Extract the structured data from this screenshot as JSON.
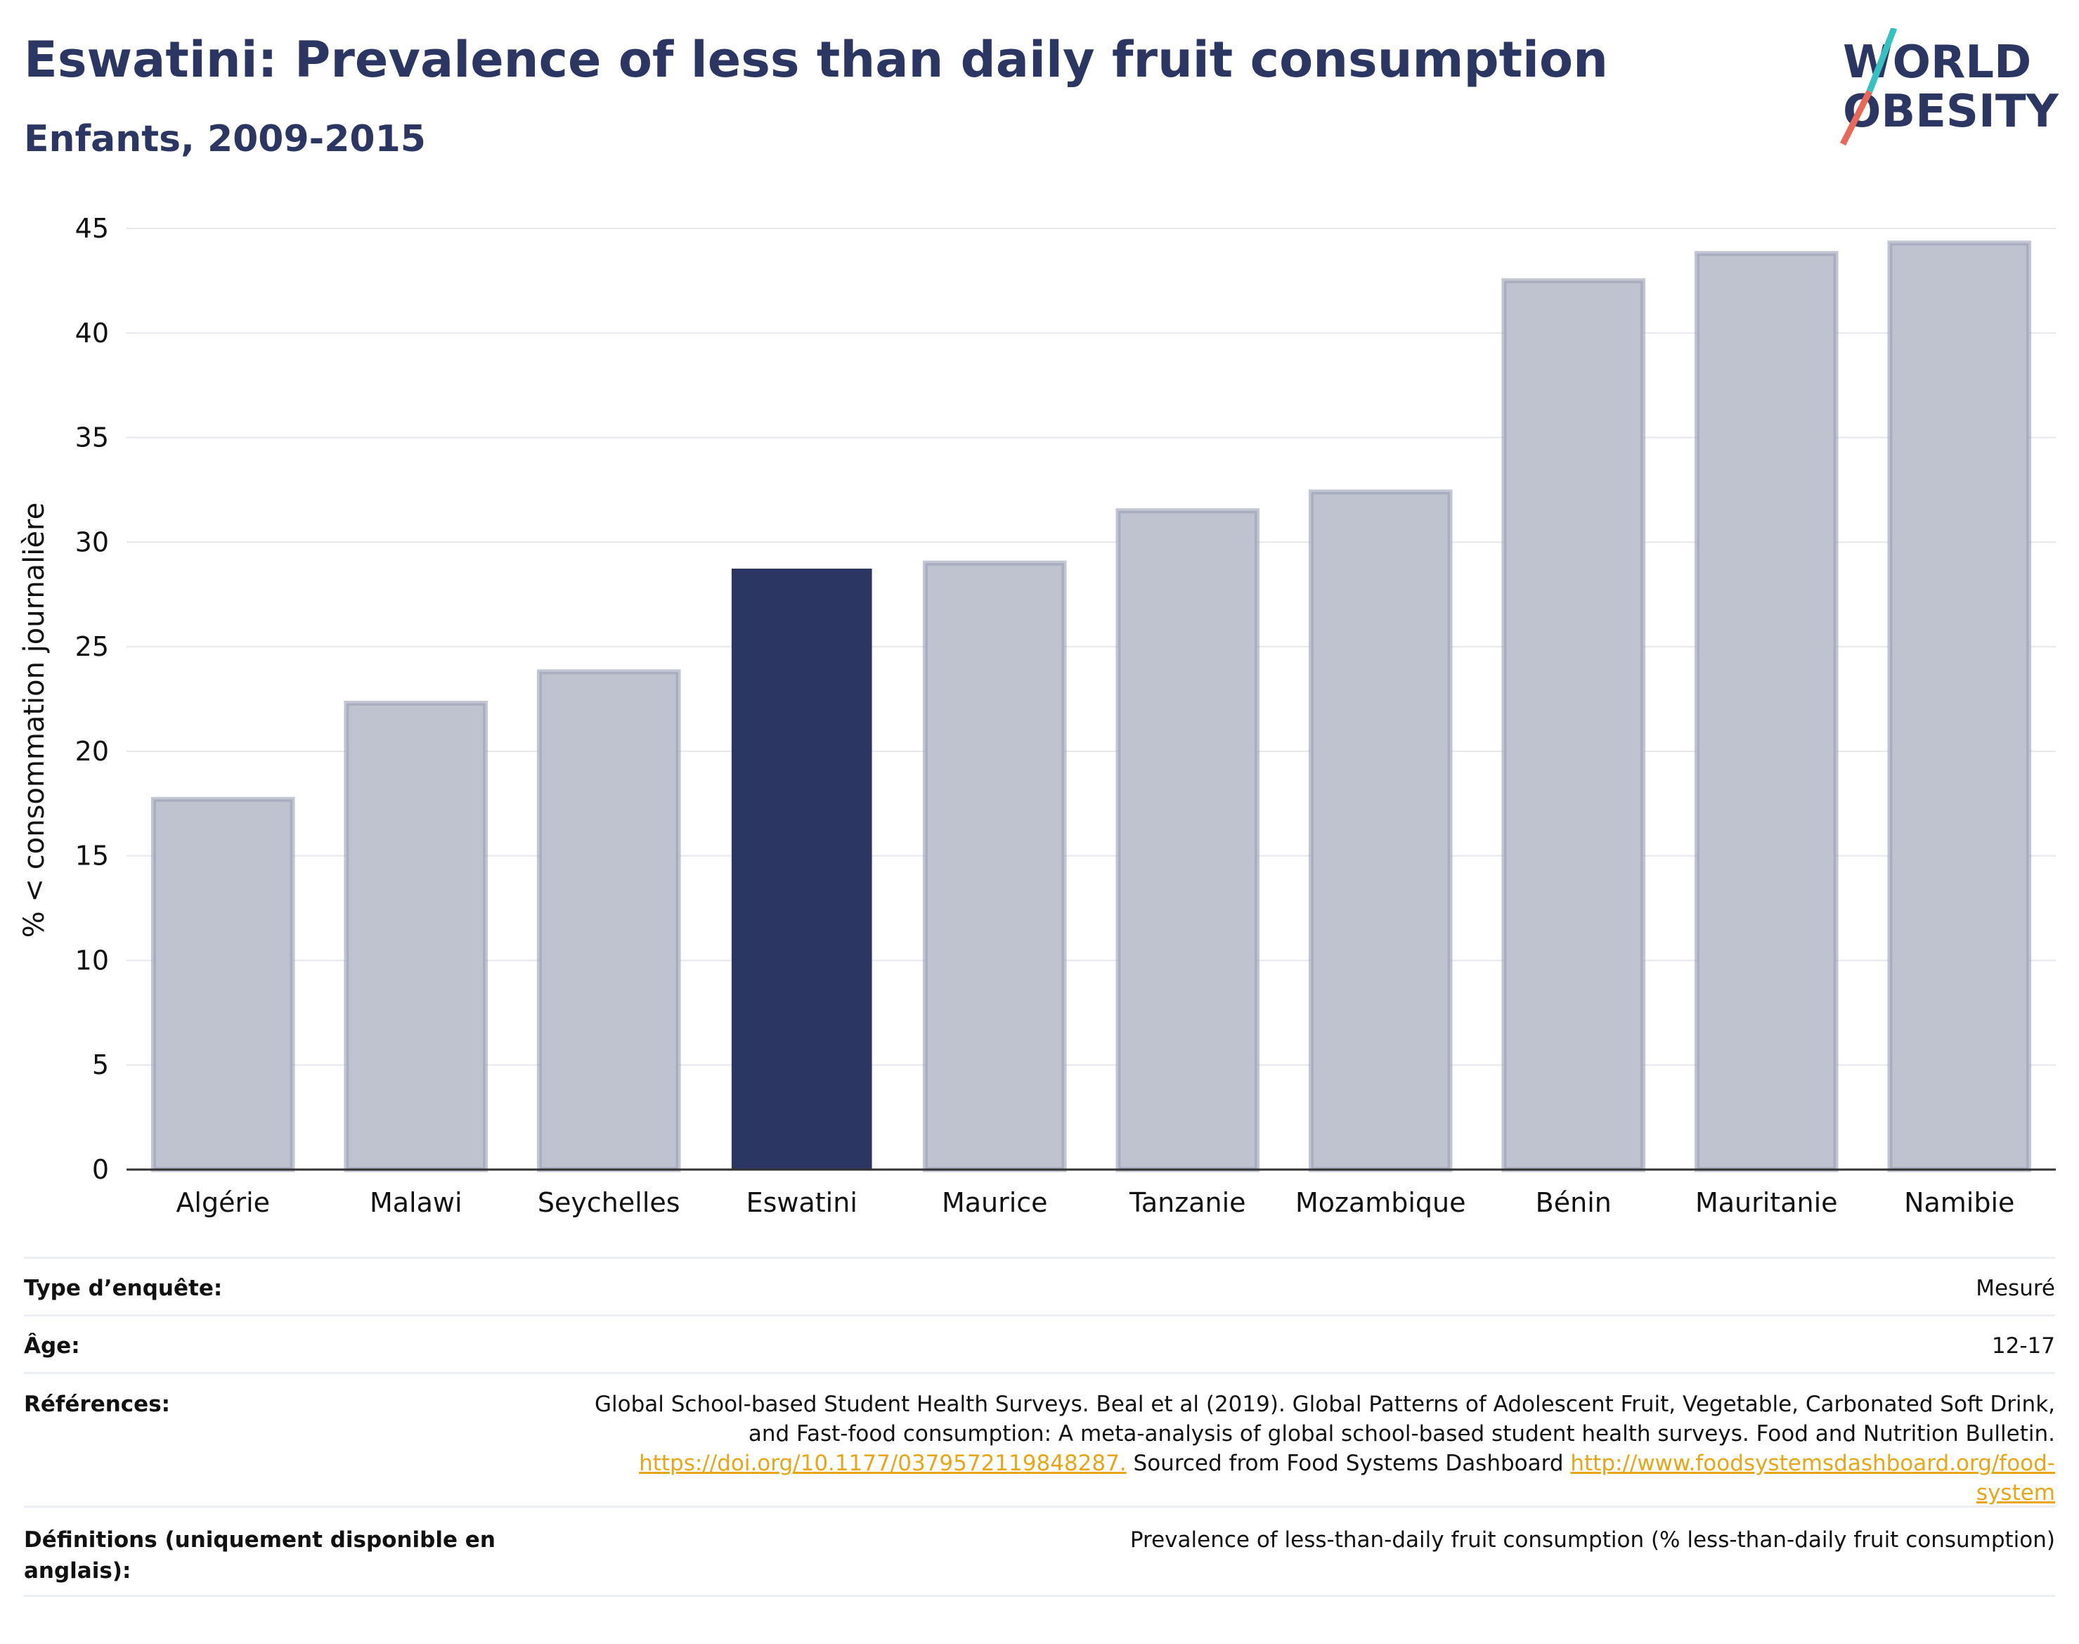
{
  "header": {
    "title": "Eswatini: Prevalence of less than daily fruit consumption",
    "subtitle": "Enfants, 2009-2015"
  },
  "logo": {
    "line1": "WORLD",
    "line2": "OBESITY",
    "colors": {
      "text": "#2b3663",
      "slash_top": "#36c0c0",
      "slash_bottom": "#e8685a"
    }
  },
  "chart_data": {
    "type": "bar",
    "categories": [
      "Algérie",
      "Malawi",
      "Seychelles",
      "Eswatini",
      "Maurice",
      "Tanzanie",
      "Mozambique",
      "Bénin",
      "Mauritanie",
      "Namibie"
    ],
    "values": [
      17.7,
      22.3,
      23.8,
      28.7,
      29.0,
      31.5,
      32.4,
      42.5,
      43.8,
      44.3
    ],
    "highlight": "Eswatini",
    "xlabel": "",
    "ylabel": "% < consommation journalière",
    "ylim": [
      0,
      45
    ],
    "yticks": [
      0,
      5,
      10,
      15,
      20,
      25,
      30,
      35,
      40,
      45
    ],
    "grid": true,
    "colors": {
      "bar": "#bfc3d0",
      "bar_edge": "#9aa0b6",
      "highlight": "#2b3663"
    }
  },
  "info": {
    "survey_label": "Type d’enquête:",
    "survey_value": "Mesuré",
    "age_label": "Âge:",
    "age_value": "12-17",
    "refs_label": "Références:",
    "refs_text1": "Global School-based Student Health Surveys. Beal et al (2019). Global Patterns of Adolescent Fruit, Vegetable, Carbonated Soft Drink,",
    "refs_text2": "and Fast-food consumption: A meta-analysis of global school-based student health surveys. Food and Nutrition Bulletin.",
    "refs_link1": "https://doi.org/10.1177/0379572119848287.",
    "refs_text3": " Sourced from Food Systems Dashboard ",
    "refs_link2a": "http://www.foodsystemsdashboard.org/food-",
    "refs_link2b": "system",
    "defs_label": "Définitions (uniquement disponible en anglais):",
    "defs_value": "Prevalence of less-than-daily fruit consumption (% less-than-daily fruit consumption)"
  }
}
